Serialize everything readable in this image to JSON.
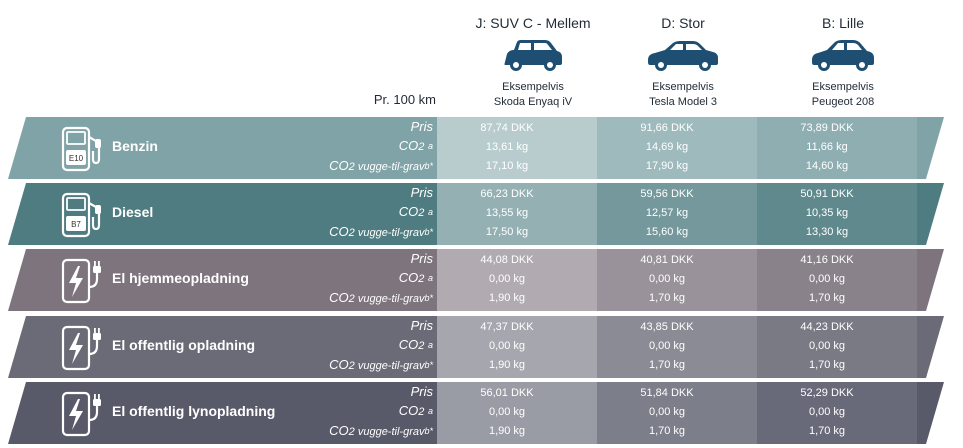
{
  "header": {
    "per_label": "Pr. 100 km",
    "columns": [
      {
        "title": "J: SUV C - Mellem",
        "example": "Eksempelvis",
        "model": "Skoda Enyaq iV",
        "icon": "suv-car-icon"
      },
      {
        "title": "D: Stor",
        "example": "Eksempelvis",
        "model": "Tesla Model 3",
        "icon": "sedan-car-icon"
      },
      {
        "title": "B: Lille",
        "example": "Eksempelvis",
        "model": "Peugeot 208",
        "icon": "hatchback-car-icon"
      }
    ]
  },
  "metrics": {
    "price": "Pris",
    "co2": "CO",
    "co2_sub": "2",
    "co2_sup": "a",
    "co2_lc_main": "CO",
    "co2_lc_sub": "2",
    "co2_lc_rest": " vugge-til-grav",
    "co2_lc_sup": "b*"
  },
  "colors": {
    "benzin": "#7fa3a7",
    "diesel": "#4f7c80",
    "el_home": "#7d747e",
    "el_public": "#6b6b78",
    "el_fast": "#585a6a",
    "car_icon": "#1e4f73"
  },
  "rows": [
    {
      "name": "Benzin",
      "icon": "fuel-pump-e10-icon",
      "badge": "E10",
      "values": [
        [
          "87,74 DKK",
          "13,61 kg",
          "17,10 kg"
        ],
        [
          "91,66 DKK",
          "14,69 kg",
          "17,90 kg"
        ],
        [
          "73,89 DKK",
          "11,66 kg",
          "14,60 kg"
        ]
      ]
    },
    {
      "name": "Diesel",
      "icon": "fuel-pump-b7-icon",
      "badge": "B7",
      "values": [
        [
          "66,23 DKK",
          "13,55 kg",
          "17,50 kg"
        ],
        [
          "59,56 DKK",
          "12,57 kg",
          "15,60 kg"
        ],
        [
          "50,91 DKK",
          "10,35 kg",
          "13,30 kg"
        ]
      ]
    },
    {
      "name": "El hjemmeopladning",
      "icon": "ev-charger-icon",
      "values": [
        [
          "44,08 DKK",
          "0,00 kg",
          "1,90 kg"
        ],
        [
          "40,81 DKK",
          "0,00 kg",
          "1,70 kg"
        ],
        [
          "41,16 DKK",
          "0,00 kg",
          "1,70 kg"
        ]
      ]
    },
    {
      "name": "El offentlig opladning",
      "icon": "ev-charger-icon",
      "values": [
        [
          "47,37 DKK",
          "0,00 kg",
          "1,90 kg"
        ],
        [
          "43,85 DKK",
          "0,00 kg",
          "1,70 kg"
        ],
        [
          "44,23 DKK",
          "0,00 kg",
          "1,70 kg"
        ]
      ]
    },
    {
      "name": "El offentlig lynopladning",
      "icon": "ev-charger-icon",
      "values": [
        [
          "56,01 DKK",
          "0,00 kg",
          "1,90 kg"
        ],
        [
          "51,84 DKK",
          "0,00 kg",
          "1,70 kg"
        ],
        [
          "52,29 DKK",
          "0,00 kg",
          "1,70 kg"
        ]
      ]
    }
  ]
}
